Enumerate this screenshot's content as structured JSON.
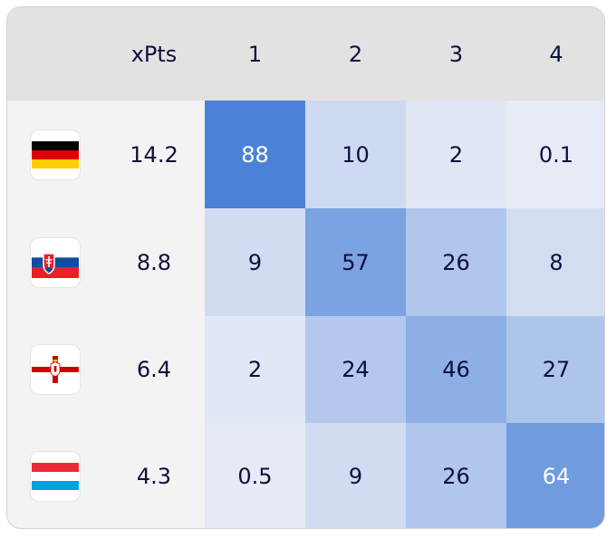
{
  "chart_data": {
    "type": "table",
    "columns": [
      "",
      "xPts",
      "1",
      "2",
      "3",
      "4"
    ],
    "rows": [
      {
        "flag": "germany-flag-icon",
        "xpts": "14.2",
        "cells": [
          "88",
          "10",
          "2",
          "0.1"
        ],
        "values": [
          88,
          10,
          2,
          0.1
        ]
      },
      {
        "flag": "slovakia-flag-icon",
        "xpts": "8.8",
        "cells": [
          "9",
          "57",
          "26",
          "8"
        ],
        "values": [
          9,
          57,
          26,
          8
        ]
      },
      {
        "flag": "northern-ireland-flag-icon",
        "xpts": "6.4",
        "cells": [
          "2",
          "24",
          "46",
          "27"
        ],
        "values": [
          2,
          24,
          46,
          27
        ]
      },
      {
        "flag": "luxembourg-flag-icon",
        "xpts": "4.3",
        "cells": [
          "0.5",
          "9",
          "26",
          "64"
        ],
        "values": [
          0.5,
          9,
          26,
          64
        ]
      }
    ]
  },
  "colors": {
    "header_bg": "#e2e2e2",
    "row_label_bg": "#f3f3f3",
    "text_dark": "#0f0f3c",
    "text_light": "#ffffff",
    "heat_low": "#e7ebf6",
    "heat_high": "#4b82d7"
  }
}
